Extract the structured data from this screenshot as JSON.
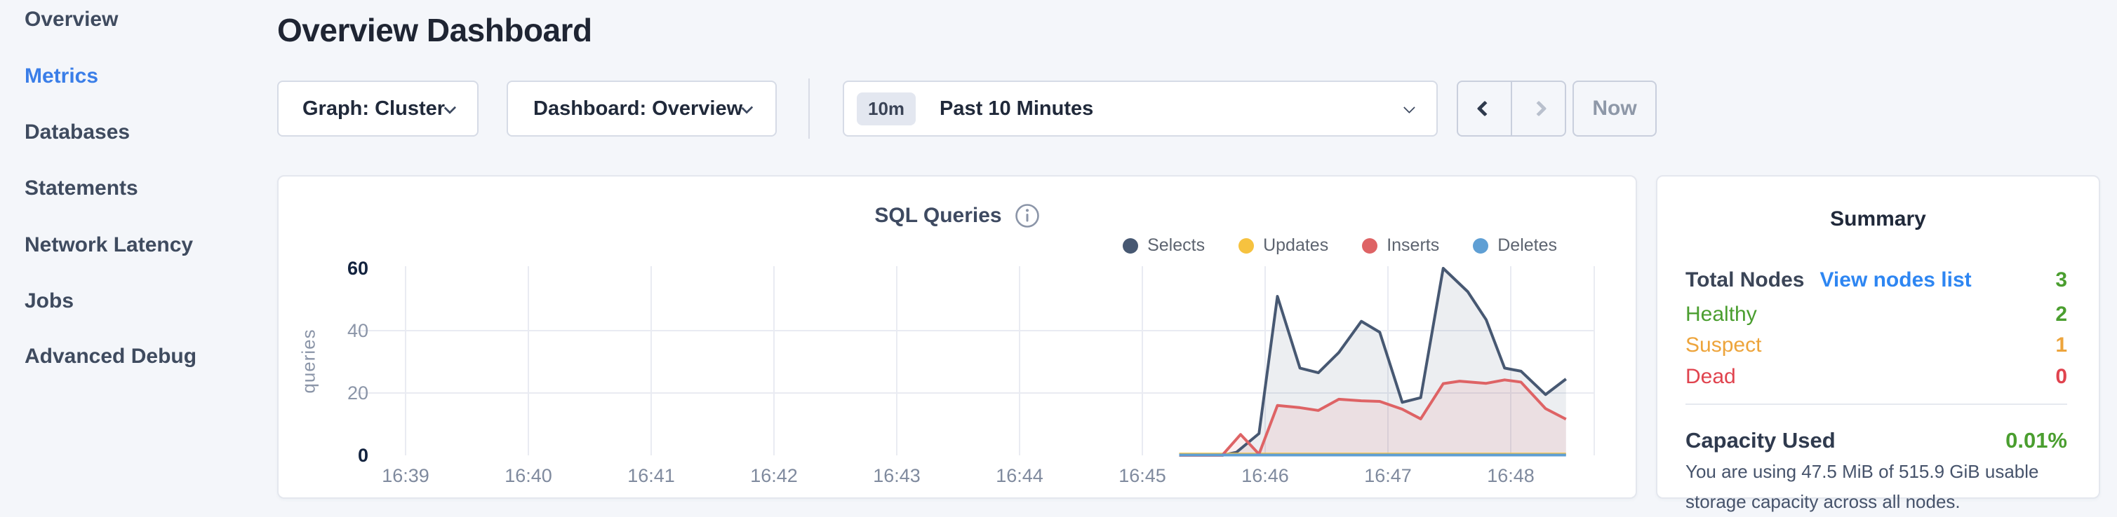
{
  "sidebar": {
    "items": [
      {
        "label": "Overview",
        "active": false
      },
      {
        "label": "Metrics",
        "active": true
      },
      {
        "label": "Databases",
        "active": false
      },
      {
        "label": "Statements",
        "active": false
      },
      {
        "label": "Network Latency",
        "active": false
      },
      {
        "label": "Jobs",
        "active": false
      },
      {
        "label": "Advanced Debug",
        "active": false
      }
    ]
  },
  "header": {
    "title": "Overview Dashboard"
  },
  "controls": {
    "graph": "Graph: Cluster",
    "dashboard": "Dashboard: Overview",
    "range_badge": "10m",
    "range_label": "Past 10 Minutes",
    "now": "Now"
  },
  "chart_data": {
    "type": "area",
    "title": "SQL Queries",
    "ylabel": "queries",
    "ylim": [
      0,
      60
    ],
    "grid": {
      "horizontal": true,
      "vertical": true
    },
    "legend_position": "top-right",
    "x_ticks": [
      "16:39",
      "16:40",
      "16:41",
      "16:42",
      "16:43",
      "16:44",
      "16:45",
      "16:46",
      "16:47",
      "16:48"
    ],
    "y_ticks": [
      {
        "value": 60,
        "label": "60",
        "emphasis": true,
        "gridline": false
      },
      {
        "value": 40,
        "label": "40",
        "emphasis": false,
        "gridline": true
      },
      {
        "value": 20,
        "label": "20",
        "emphasis": false,
        "gridline": true
      },
      {
        "value": 0,
        "label": "0",
        "emphasis": true,
        "gridline": false
      }
    ],
    "series": [
      {
        "name": "Selects",
        "color": "#475872",
        "fill": "rgba(71,88,114,0.10)",
        "points": [
          [
            "16:45:18",
            0
          ],
          [
            "16:45:39",
            0
          ],
          [
            "16:45:46",
            1
          ],
          [
            "16:45:57",
            7
          ],
          [
            "16:46:06",
            51
          ],
          [
            "16:46:17",
            28
          ],
          [
            "16:46:26",
            26.5
          ],
          [
            "16:46:36",
            33
          ],
          [
            "16:46:47",
            43
          ],
          [
            "16:46:56",
            39.5
          ],
          [
            "16:47:07",
            17
          ],
          [
            "16:47:16",
            18.5
          ],
          [
            "16:47:27",
            60
          ],
          [
            "16:47:39",
            52.5
          ],
          [
            "16:47:48",
            43.5
          ],
          [
            "16:47:57",
            28
          ],
          [
            "16:48:05",
            27
          ],
          [
            "16:48:17",
            19.5
          ],
          [
            "16:48:27",
            24.5
          ]
        ]
      },
      {
        "name": "Updates",
        "color": "#f6c23f",
        "fill": "rgba(246,194,63,0.10)",
        "points": [
          [
            "16:45:18",
            0.4
          ],
          [
            "16:48:27",
            0.4
          ]
        ]
      },
      {
        "name": "Inserts",
        "color": "#de6365",
        "fill": "rgba(222,99,101,0.10)",
        "points": [
          [
            "16:45:18",
            0
          ],
          [
            "16:45:39",
            0
          ],
          [
            "16:45:48",
            6.7
          ],
          [
            "16:45:57",
            0.4
          ],
          [
            "16:46:06",
            16
          ],
          [
            "16:46:17",
            15.3
          ],
          [
            "16:46:26",
            14.4
          ],
          [
            "16:46:36",
            18
          ],
          [
            "16:46:47",
            17.5
          ],
          [
            "16:46:56",
            17.3
          ],
          [
            "16:47:07",
            14.8
          ],
          [
            "16:47:16",
            11.7
          ],
          [
            "16:47:27",
            23
          ],
          [
            "16:47:35",
            23.8
          ],
          [
            "16:47:48",
            23.1
          ],
          [
            "16:47:57",
            24.2
          ],
          [
            "16:48:05",
            23.5
          ],
          [
            "16:48:17",
            15
          ],
          [
            "16:48:27",
            11.6
          ]
        ]
      },
      {
        "name": "Deletes",
        "color": "#5f9fd4",
        "fill": "rgba(95,159,212,0.10)",
        "points": [
          [
            "16:45:18",
            0.1
          ],
          [
            "16:48:27",
            0.1
          ]
        ]
      }
    ]
  },
  "summary": {
    "title": "Summary",
    "rows": [
      {
        "label": "Total Nodes",
        "link": "View nodes list",
        "value": "3",
        "label_color": "#3b4557",
        "link_color": "#2e86f2",
        "value_color": "#4a9e2f"
      },
      {
        "label": "Healthy",
        "value": "2",
        "color": "#4a9e2f"
      },
      {
        "label": "Suspect",
        "value": "1",
        "color": "#eda43b"
      },
      {
        "label": "Dead",
        "value": "0",
        "color": "#e0434e"
      }
    ],
    "capacity": {
      "label": "Capacity Used",
      "value": "0.01%",
      "value_color": "#4a9e2f",
      "description": "You are using 47.5 MiB of 515.9 GiB usable storage capacity across all nodes."
    }
  }
}
